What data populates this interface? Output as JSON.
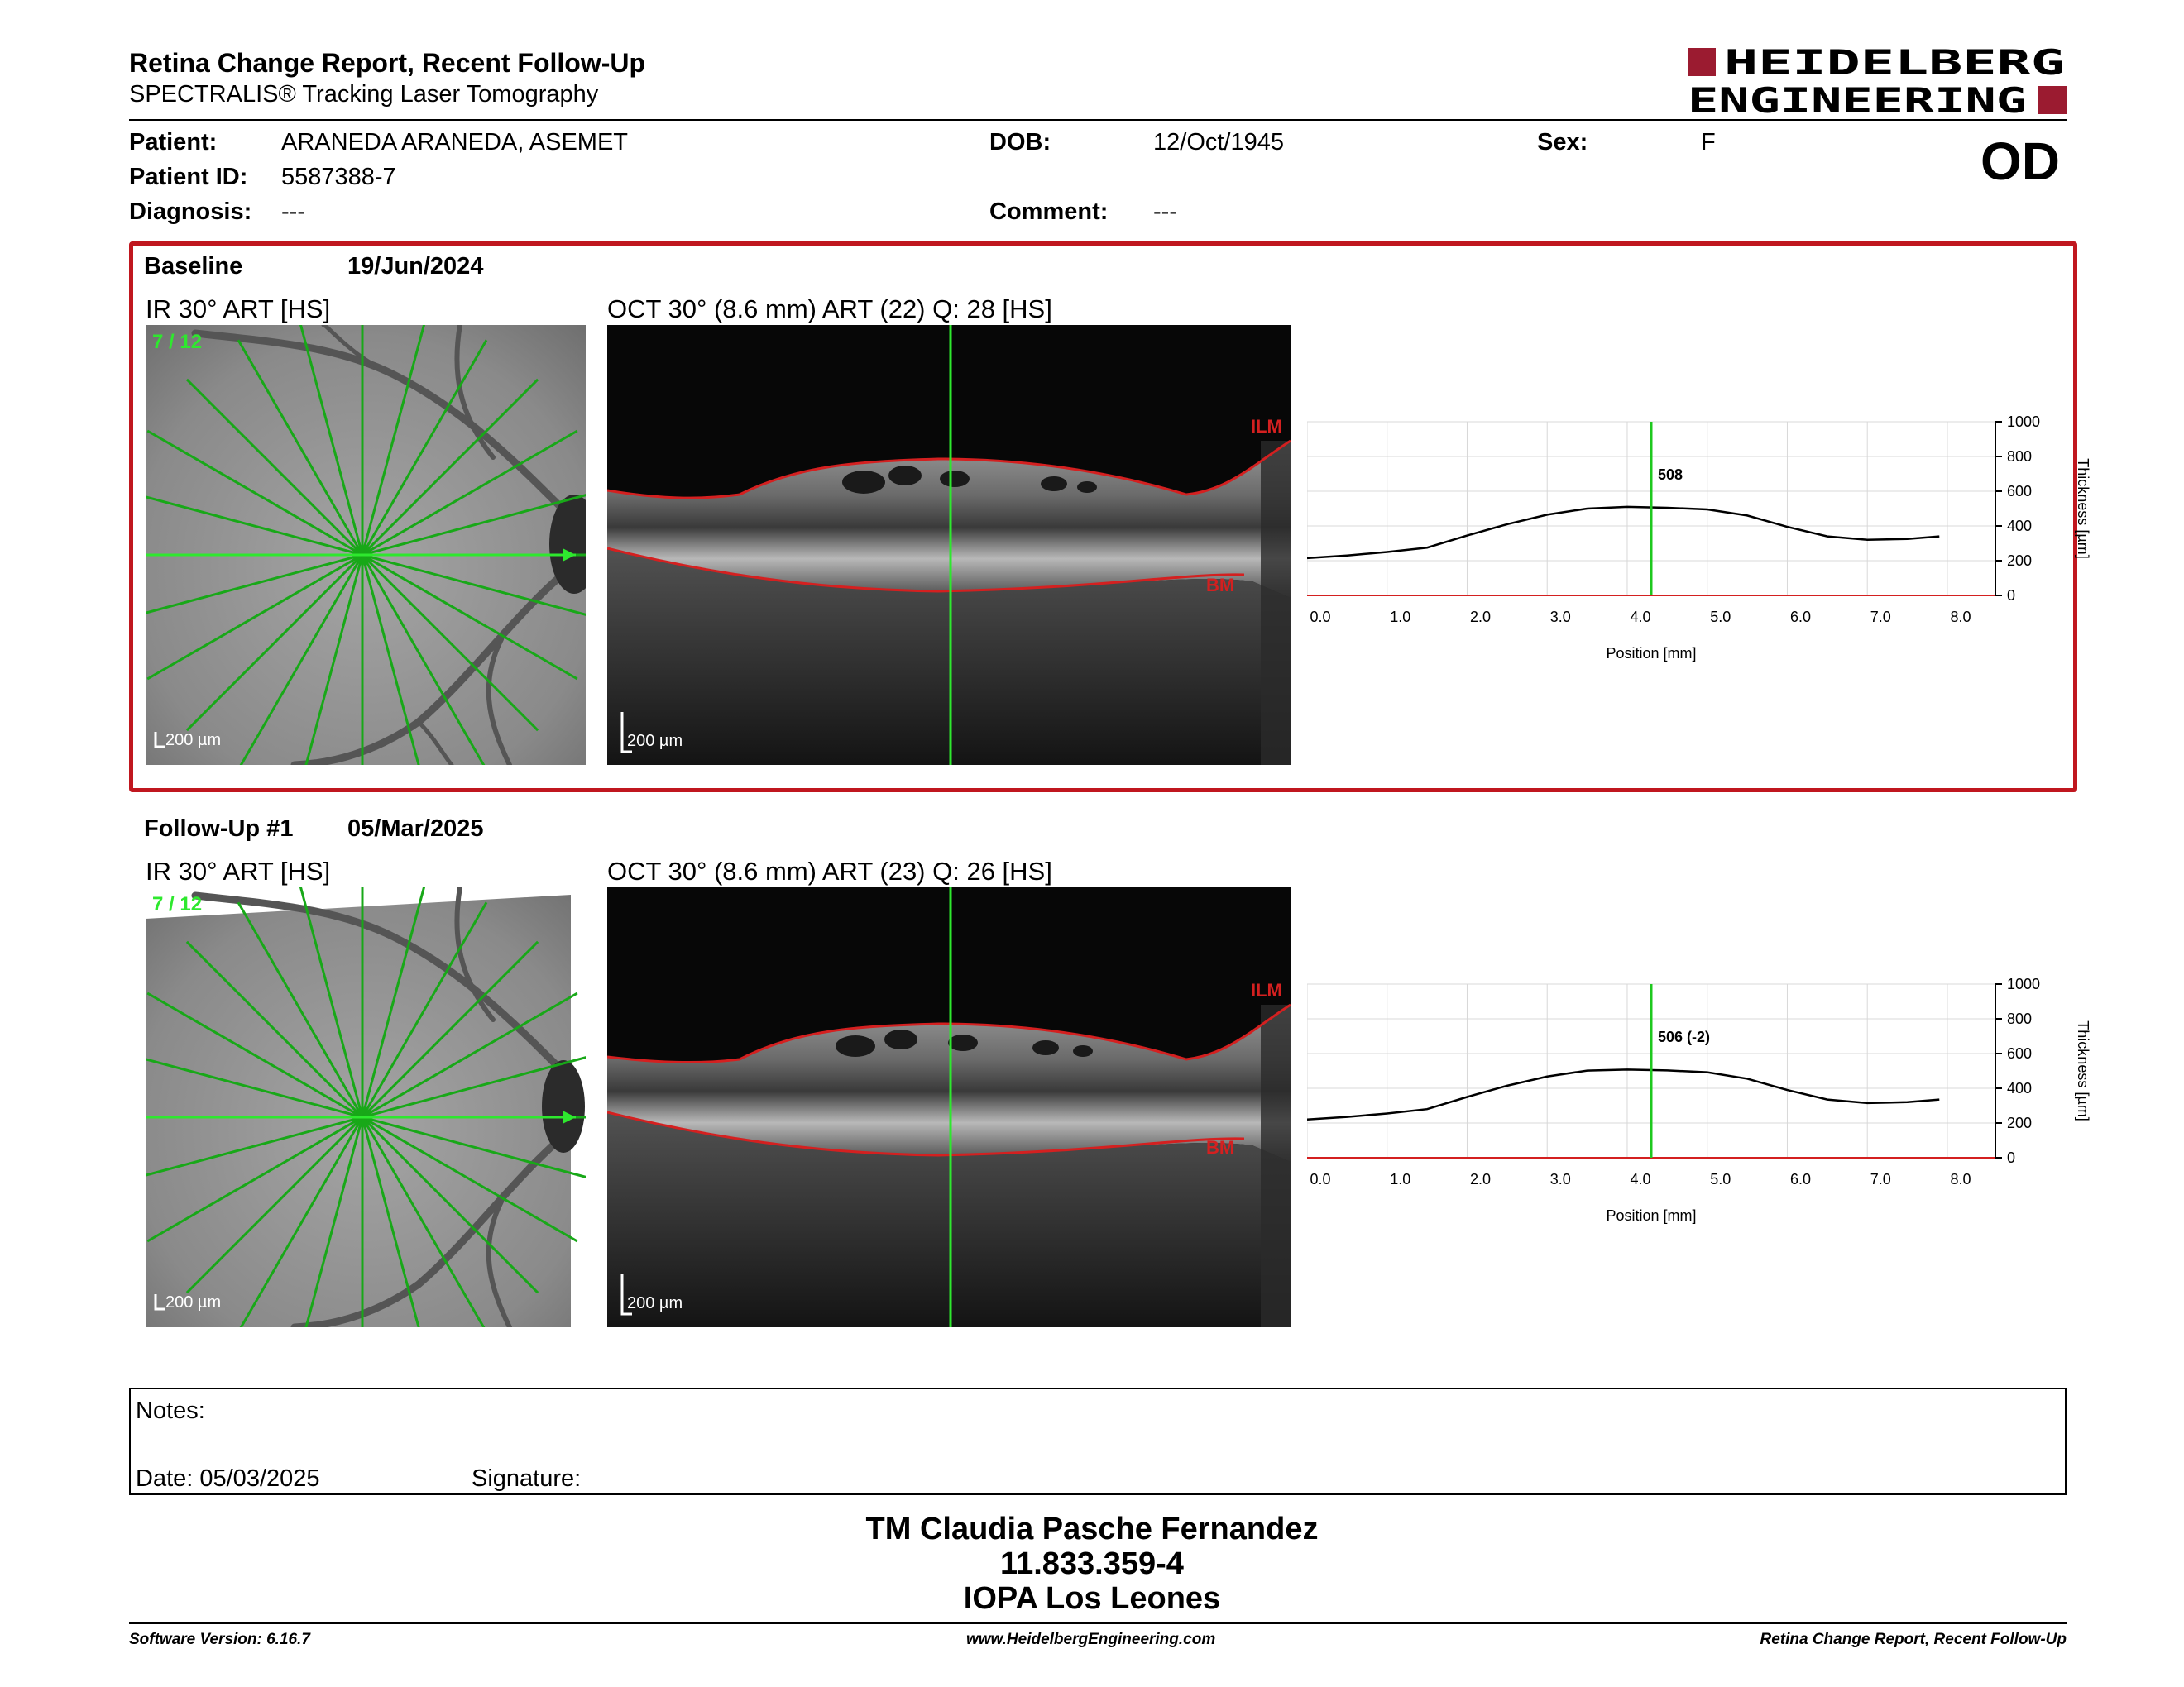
{
  "report": {
    "title": "Retina Change Report, Recent Follow-Up",
    "subtitle": "SPECTRALIS® Tracking Laser Tomography",
    "brand_line1": "HEIDELBERG",
    "brand_line2": "ENGINEERING",
    "eye": "OD"
  },
  "patient": {
    "name_label": "Patient:",
    "name": "ARANEDA ARANEDA, ASEMET",
    "id_label": "Patient ID:",
    "id": "5587388-7",
    "diagnosis_label": "Diagnosis:",
    "diagnosis": "---",
    "dob_label": "DOB:",
    "dob": "12/Oct/1945",
    "comment_label": "Comment:",
    "comment": "---",
    "sex_label": "Sex:",
    "sex": "F"
  },
  "exams": [
    {
      "label": "Baseline",
      "date": "19/Jun/2024",
      "ir_title": "IR 30° ART [HS]",
      "scan_index": "7 / 12",
      "ir_scale": "200 µm",
      "oct_title": "OCT 30° (8.6 mm) ART (22) Q: 28 [HS]",
      "oct_scale": "200 µm",
      "ilm_label": "ILM",
      "bm_label": "BM",
      "thickness_readout": "508"
    },
    {
      "label": "Follow-Up #1",
      "date": "05/Mar/2025",
      "ir_title": "IR 30° ART [HS]",
      "scan_index": "7 / 12",
      "ir_scale": "200 µm",
      "oct_title": "OCT 30° (8.6 mm) ART (23) Q: 26 [HS]",
      "oct_scale": "200 µm",
      "ilm_label": "ILM",
      "bm_label": "BM",
      "thickness_readout": "506 (-2)"
    }
  ],
  "chart_data": [
    {
      "type": "line",
      "xlabel": "Position [mm]",
      "ylabel": "Thickness [µm]",
      "xlim": [
        0,
        8.6
      ],
      "ylim": [
        0,
        1000
      ],
      "x_ticks": [
        "0.0",
        "1.0",
        "2.0",
        "3.0",
        "4.0",
        "5.0",
        "6.0",
        "7.0",
        "8.0"
      ],
      "y_ticks": [
        "0",
        "200",
        "400",
        "600",
        "800",
        "1000"
      ],
      "grid": true,
      "marker_position": 4.3,
      "marker_label": "508",
      "series": [
        {
          "x": [
            0.0,
            0.5,
            1.0,
            1.5,
            2.0,
            2.5,
            3.0,
            3.5,
            4.0,
            4.5,
            5.0,
            5.5,
            6.0,
            6.5,
            7.0,
            7.5,
            7.9
          ],
          "y": [
            215,
            230,
            250,
            275,
            345,
            410,
            465,
            500,
            510,
            505,
            495,
            460,
            395,
            340,
            320,
            325,
            340
          ]
        }
      ]
    },
    {
      "type": "line",
      "xlabel": "Position [mm]",
      "ylabel": "Thickness [µm]",
      "xlim": [
        0,
        8.6
      ],
      "ylim": [
        0,
        1000
      ],
      "x_ticks": [
        "0.0",
        "1.0",
        "2.0",
        "3.0",
        "4.0",
        "5.0",
        "6.0",
        "7.0",
        "8.0"
      ],
      "y_ticks": [
        "0",
        "200",
        "400",
        "600",
        "800",
        "1000"
      ],
      "grid": true,
      "marker_position": 4.3,
      "marker_label": "506 (-2)",
      "series": [
        {
          "x": [
            0.0,
            0.5,
            1.0,
            1.5,
            2.0,
            2.5,
            3.0,
            3.5,
            4.0,
            4.5,
            5.0,
            5.5,
            6.0,
            6.5,
            7.0,
            7.5,
            7.9
          ],
          "y": [
            220,
            235,
            255,
            280,
            350,
            415,
            468,
            502,
            508,
            503,
            492,
            455,
            390,
            335,
            315,
            320,
            335
          ]
        }
      ]
    }
  ],
  "notes": {
    "label": "Notes:",
    "date_text": "Date: 05/03/2025",
    "signature_label": "Signature:"
  },
  "stamp": {
    "line1": "TM Claudia Pasche Fernandez",
    "line2": "11.833.359-4",
    "line3": "IOPA Los Leones"
  },
  "footer": {
    "version": "Software Version: 6.16.7",
    "website": "www.HeidelbergEngineering.com",
    "report_name": "Retina Change Report, Recent Follow-Up"
  },
  "colors": {
    "brand_red": "#9b1b30",
    "frame_red": "#c0171f",
    "scan_green": "#1ec81e",
    "layer_red": "#d42020"
  }
}
